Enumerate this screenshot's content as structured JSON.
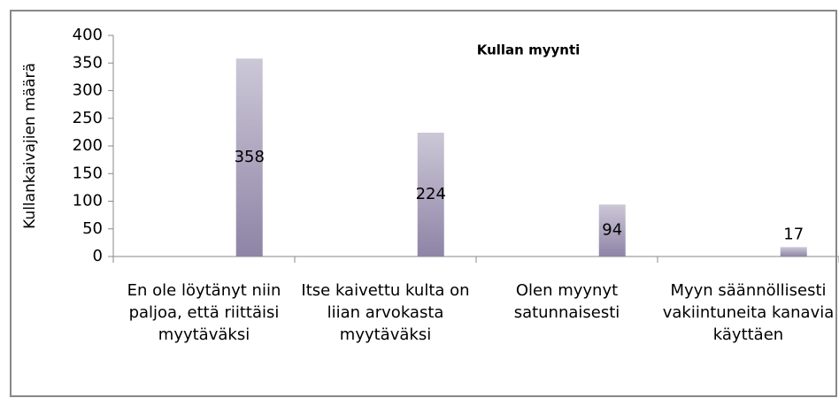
{
  "chart_data": {
    "type": "bar",
    "title": "Kullan myynti",
    "y_label": "Kullankaivajien määrä",
    "categories": [
      "En ole löytänyt niin paljoa, että riittäisi myytäväksi",
      "Itse kaivettu kulta on liian arvokasta myytäväksi",
      "Olen myynyt satunnaisesti",
      "Myyn säännöllisesti vakiintuneita kanavia käyttäen"
    ],
    "values": [
      358,
      224,
      94,
      17
    ],
    "color": "#8e84a6",
    "ylim": [
      0,
      400
    ],
    "yticks": [
      0,
      50,
      100,
      150,
      200,
      250,
      300,
      350,
      400
    ],
    "grid": false
  }
}
